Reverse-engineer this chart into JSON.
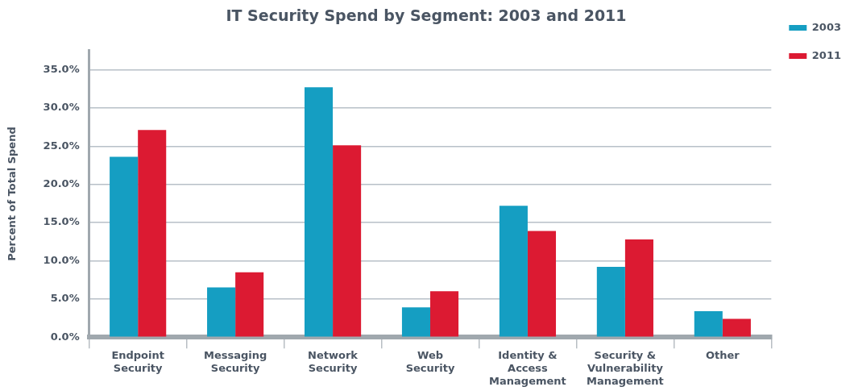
{
  "chart_data": {
    "type": "bar",
    "title": "IT Security Spend by Segment: 2003 and 2011",
    "ylabel": "Percent of Total Spend",
    "categories": [
      "Endpoint Security",
      "Messaging Security",
      "Network Security",
      "Web Security",
      "Identity & Access Management",
      "Security & Vulnerability Management",
      "Other"
    ],
    "series": [
      {
        "name": "2003",
        "color": "#159ec2",
        "values": [
          23.6,
          6.5,
          32.7,
          3.9,
          17.2,
          9.2,
          3.4
        ]
      },
      {
        "name": "2011",
        "color": "#dc1a32",
        "values": [
          27.1,
          8.5,
          25.1,
          6.0,
          13.9,
          12.8,
          2.4
        ]
      }
    ],
    "ylim": [
      0,
      37.5
    ],
    "yticks": [
      {
        "value": 0,
        "label": "0.0%"
      },
      {
        "value": 5,
        "label": "5.0%"
      },
      {
        "value": 10,
        "label": "10.0%"
      },
      {
        "value": 15,
        "label": "15.0%"
      },
      {
        "value": 20,
        "label": "20.0%"
      },
      {
        "value": 25,
        "label": "25.0%"
      },
      {
        "value": 30,
        "label": "30.0%"
      },
      {
        "value": 35,
        "label": "35.0%"
      }
    ],
    "grid": "y",
    "legend": "top right"
  }
}
